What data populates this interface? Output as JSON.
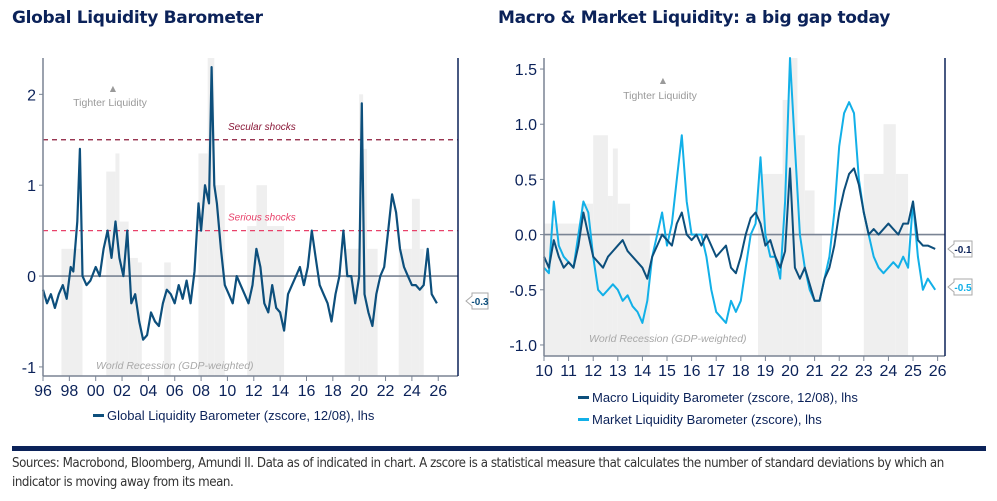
{
  "left": {
    "title": "Global Liquidity Barometer",
    "annotation_tighter": "Tighter Liquidity",
    "annotation_recession": "World Recession (GDP-weighted)",
    "secular_label": "Secular shocks",
    "serious_label": "Serious shocks",
    "legend": "Global Liquidity Barometer (zscore, 12/08), lhs",
    "last_value_label": "-0.3"
  },
  "right": {
    "title": "Macro & Market Liquidity: a big gap today",
    "annotation_tighter": "Tighter Liquidity",
    "annotation_recession": "World Recession (GDP-weighted)",
    "legend_macro": "Macro Liquidity Barometer (zscore, 12/08), lhs",
    "legend_market": "Market Liquidity Barometer (zscore), lhs",
    "last_value_macro": "-0.1",
    "last_value_market": "-0.5"
  },
  "footer": "Sources: Macrobond, Bloomberg, Amundi II. Data as of indicated in chart.  A zscore is a statistical measure that calculates the number of standard deviations by which an indicator is moving away from its mean.",
  "colors": {
    "navy": "#0b2259",
    "series_dark": "#0d4f7c",
    "series_light": "#12b0e8",
    "secular": "#8b1a3a",
    "serious": "#e8426a",
    "recession": "#efefef",
    "zero_line": "#7a8494"
  },
  "chart_data": [
    {
      "type": "line",
      "title": "Global Liquidity Barometer",
      "xlabel": "",
      "ylabel": "",
      "xlim": [
        1996,
        2027.5
      ],
      "ylim": [
        -1.1,
        2.4
      ],
      "x_ticks": [
        "96",
        "98",
        "00",
        "02",
        "04",
        "06",
        "08",
        "10",
        "12",
        "14",
        "16",
        "18",
        "20",
        "22",
        "24",
        "26"
      ],
      "x_tick_values": [
        1996,
        1998,
        2000,
        2002,
        2004,
        2006,
        2008,
        2010,
        2012,
        2014,
        2016,
        2018,
        2020,
        2022,
        2024,
        2026
      ],
      "y_ticks": [
        -1,
        0,
        1,
        2
      ],
      "reference_lines": [
        {
          "label": "Secular shocks",
          "y": 1.5
        },
        {
          "label": "Serious shocks",
          "y": 0.5
        },
        {
          "label": "zero",
          "y": 0
        }
      ],
      "recession_shading": [
        {
          "x0": 1997.4,
          "x1": 1999.0,
          "level": 0.3
        },
        {
          "x0": 2000.8,
          "x1": 2001.5,
          "level": 1.15
        },
        {
          "x0": 2001.5,
          "x1": 2001.8,
          "level": 1.35
        },
        {
          "x0": 2001.8,
          "x1": 2002.5,
          "level": 0.6
        },
        {
          "x0": 2002.5,
          "x1": 2003.2,
          "level": 0.2
        },
        {
          "x0": 2003.2,
          "x1": 2003.5,
          "level": 0.15
        },
        {
          "x0": 2005.2,
          "x1": 2005.7,
          "level": 0.15
        },
        {
          "x0": 2007.8,
          "x1": 2008.5,
          "level": 1.35
        },
        {
          "x0": 2008.5,
          "x1": 2009.0,
          "level": 2.4
        },
        {
          "x0": 2009.0,
          "x1": 2009.8,
          "level": 1.0
        },
        {
          "x0": 2011.5,
          "x1": 2012.2,
          "level": 0.55
        },
        {
          "x0": 2012.2,
          "x1": 2013.0,
          "level": 1.0
        },
        {
          "x0": 2013.0,
          "x1": 2014.3,
          "level": 0.55
        },
        {
          "x0": 2018.9,
          "x1": 2020.0,
          "level": 0.3
        },
        {
          "x0": 2020.0,
          "x1": 2020.3,
          "level": 2.0
        },
        {
          "x0": 2020.3,
          "x1": 2020.6,
          "level": 1.4
        },
        {
          "x0": 2020.6,
          "x1": 2021.4,
          "level": 0.3
        },
        {
          "x0": 2023.0,
          "x1": 2024.0,
          "level": 0.3
        },
        {
          "x0": 2024.0,
          "x1": 2024.6,
          "level": 0.85
        },
        {
          "x0": 2024.6,
          "x1": 2024.9,
          "level": 0.3
        }
      ],
      "series": [
        {
          "name": "Global Liquidity Barometer (zscore, 12/08), lhs",
          "x": [
            1996.0,
            1996.3,
            1996.6,
            1996.9,
            1997.2,
            1997.5,
            1997.8,
            1998.1,
            1998.3,
            1998.6,
            1998.8,
            1999.0,
            1999.3,
            1999.6,
            2000.0,
            2000.3,
            2000.6,
            2000.9,
            2001.2,
            2001.5,
            2001.8,
            2002.1,
            2002.4,
            2002.7,
            2003.0,
            2003.3,
            2003.6,
            2003.9,
            2004.2,
            2004.5,
            2004.8,
            2005.1,
            2005.4,
            2005.7,
            2006.0,
            2006.3,
            2006.6,
            2006.9,
            2007.2,
            2007.5,
            2007.8,
            2008.0,
            2008.3,
            2008.6,
            2008.8,
            2009.0,
            2009.2,
            2009.5,
            2009.8,
            2010.1,
            2010.4,
            2010.7,
            2011.0,
            2011.3,
            2011.6,
            2011.9,
            2012.2,
            2012.5,
            2012.8,
            2013.1,
            2013.4,
            2013.7,
            2014.0,
            2014.3,
            2014.6,
            2014.9,
            2015.2,
            2015.5,
            2015.8,
            2016.1,
            2016.4,
            2016.7,
            2017.0,
            2017.3,
            2017.6,
            2017.9,
            2018.2,
            2018.5,
            2018.8,
            2019.1,
            2019.4,
            2019.7,
            2020.0,
            2020.2,
            2020.4,
            2020.7,
            2021.0,
            2021.3,
            2021.6,
            2021.9,
            2022.2,
            2022.5,
            2022.8,
            2023.1,
            2023.4,
            2023.7,
            2024.0,
            2024.3,
            2024.6,
            2024.9,
            2025.2,
            2025.5,
            2025.9
          ],
          "y": [
            -0.15,
            -0.3,
            -0.2,
            -0.35,
            -0.2,
            -0.1,
            -0.25,
            0.1,
            0.05,
            0.6,
            1.4,
            0.0,
            -0.1,
            -0.05,
            0.1,
            0.0,
            0.3,
            0.5,
            0.2,
            0.6,
            0.2,
            0.0,
            0.5,
            -0.3,
            -0.2,
            -0.5,
            -0.7,
            -0.65,
            -0.4,
            -0.5,
            -0.55,
            -0.3,
            -0.15,
            -0.2,
            -0.3,
            -0.1,
            -0.25,
            -0.05,
            -0.3,
            0.05,
            0.8,
            0.5,
            1.0,
            0.8,
            2.3,
            1.0,
            0.8,
            0.3,
            -0.1,
            -0.2,
            -0.3,
            0.0,
            -0.1,
            -0.2,
            -0.3,
            -0.1,
            0.3,
            0.1,
            -0.3,
            -0.4,
            -0.1,
            -0.35,
            -0.4,
            -0.6,
            -0.2,
            -0.1,
            0.0,
            0.1,
            -0.1,
            0.1,
            0.5,
            0.2,
            -0.1,
            -0.2,
            -0.3,
            -0.5,
            -0.2,
            0.0,
            0.5,
            0.0,
            0.0,
            -0.3,
            0.0,
            1.9,
            -0.2,
            -0.4,
            -0.55,
            -0.2,
            0.0,
            0.1,
            0.5,
            0.9,
            0.7,
            0.3,
            0.1,
            0.0,
            -0.1,
            -0.1,
            -0.15,
            -0.1,
            0.3,
            -0.2,
            -0.3
          ]
        }
      ]
    },
    {
      "type": "line",
      "title": "Macro & Market Liquidity: a big gap today",
      "xlabel": "",
      "ylabel": "",
      "xlim": [
        2010,
        2026.3
      ],
      "ylim": [
        -1.1,
        1.6
      ],
      "x_ticks": [
        "10",
        "11",
        "12",
        "13",
        "14",
        "15",
        "16",
        "17",
        "18",
        "19",
        "20",
        "21",
        "22",
        "23",
        "24",
        "25",
        "26"
      ],
      "x_tick_values": [
        2010,
        2011,
        2012,
        2013,
        2014,
        2015,
        2016,
        2017,
        2018,
        2019,
        2020,
        2021,
        2022,
        2023,
        2024,
        2025,
        2026
      ],
      "y_ticks": [
        -1.0,
        -0.5,
        0.0,
        0.5,
        1.0,
        1.5
      ],
      "reference_lines": [
        {
          "label": "zero",
          "y": 0
        }
      ],
      "recession_shading": [
        {
          "x0": 2010.0,
          "x1": 2011.5,
          "level": 0.1
        },
        {
          "x0": 2011.5,
          "x1": 2012.0,
          "level": 0.28
        },
        {
          "x0": 2012.0,
          "x1": 2012.6,
          "level": 0.9
        },
        {
          "x0": 2012.6,
          "x1": 2012.8,
          "level": 0.35
        },
        {
          "x0": 2012.8,
          "x1": 2013.0,
          "level": 0.78
        },
        {
          "x0": 2013.0,
          "x1": 2013.5,
          "level": 0.28
        },
        {
          "x0": 2013.5,
          "x1": 2014.3,
          "level": 0.0
        },
        {
          "x0": 2018.7,
          "x1": 2019.7,
          "level": 0.55
        },
        {
          "x0": 2019.7,
          "x1": 2020.0,
          "level": 1.22
        },
        {
          "x0": 2020.0,
          "x1": 2020.3,
          "level": 1.6
        },
        {
          "x0": 2020.3,
          "x1": 2020.6,
          "level": 0.9
        },
        {
          "x0": 2020.6,
          "x1": 2021.0,
          "level": 0.4
        },
        {
          "x0": 2021.0,
          "x1": 2021.3,
          "level": 0.0
        },
        {
          "x0": 2023.0,
          "x1": 2023.8,
          "level": 0.55
        },
        {
          "x0": 2023.8,
          "x1": 2024.3,
          "level": 1.0
        },
        {
          "x0": 2024.3,
          "x1": 2024.8,
          "level": 0.55
        }
      ],
      "series": [
        {
          "name": "Macro Liquidity Barometer (zscore, 12/08), lhs",
          "x": [
            2010.0,
            2010.2,
            2010.4,
            2010.6,
            2010.8,
            2011.0,
            2011.2,
            2011.4,
            2011.6,
            2011.8,
            2012.0,
            2012.2,
            2012.4,
            2012.6,
            2012.8,
            2013.0,
            2013.2,
            2013.4,
            2013.6,
            2013.8,
            2014.0,
            2014.2,
            2014.4,
            2014.6,
            2014.8,
            2015.0,
            2015.2,
            2015.4,
            2015.6,
            2015.8,
            2016.0,
            2016.2,
            2016.4,
            2016.6,
            2016.8,
            2017.0,
            2017.2,
            2017.4,
            2017.6,
            2017.8,
            2018.0,
            2018.2,
            2018.4,
            2018.6,
            2018.8,
            2019.0,
            2019.2,
            2019.4,
            2019.6,
            2019.8,
            2020.0,
            2020.2,
            2020.4,
            2020.6,
            2020.8,
            2021.0,
            2021.2,
            2021.4,
            2021.6,
            2021.8,
            2022.0,
            2022.2,
            2022.4,
            2022.6,
            2022.8,
            2023.0,
            2023.2,
            2023.4,
            2023.6,
            2023.8,
            2024.0,
            2024.2,
            2024.4,
            2024.6,
            2024.8,
            2025.0,
            2025.2,
            2025.4,
            2025.6,
            2025.9
          ],
          "y": [
            -0.2,
            -0.3,
            -0.05,
            -0.2,
            -0.3,
            -0.25,
            -0.3,
            -0.1,
            0.2,
            0.0,
            -0.2,
            -0.25,
            -0.3,
            -0.2,
            -0.15,
            -0.1,
            -0.05,
            -0.15,
            -0.2,
            -0.25,
            -0.3,
            -0.4,
            -0.2,
            -0.1,
            0.0,
            -0.05,
            -0.1,
            0.1,
            0.2,
            0.0,
            -0.05,
            0.0,
            -0.1,
            0.0,
            -0.1,
            -0.2,
            -0.15,
            -0.1,
            -0.3,
            -0.35,
            -0.2,
            0.0,
            0.15,
            0.2,
            0.1,
            -0.1,
            -0.05,
            -0.2,
            -0.3,
            -0.15,
            0.6,
            -0.3,
            -0.4,
            -0.3,
            -0.45,
            -0.6,
            -0.6,
            -0.4,
            -0.3,
            -0.1,
            0.2,
            0.4,
            0.55,
            0.6,
            0.45,
            0.2,
            0.0,
            0.05,
            0.0,
            0.05,
            0.1,
            0.05,
            0.0,
            0.1,
            0.1,
            0.3,
            -0.05,
            -0.1,
            -0.1,
            -0.13
          ]
        },
        {
          "name": "Market Liquidity Barometer (zscore), lhs",
          "x": [
            2010.0,
            2010.2,
            2010.4,
            2010.6,
            2010.8,
            2011.0,
            2011.2,
            2011.4,
            2011.6,
            2011.8,
            2012.0,
            2012.2,
            2012.4,
            2012.6,
            2012.8,
            2013.0,
            2013.2,
            2013.4,
            2013.6,
            2013.8,
            2014.0,
            2014.2,
            2014.4,
            2014.6,
            2014.8,
            2015.0,
            2015.2,
            2015.4,
            2015.6,
            2015.8,
            2016.0,
            2016.2,
            2016.4,
            2016.6,
            2016.8,
            2017.0,
            2017.2,
            2017.4,
            2017.6,
            2017.8,
            2018.0,
            2018.2,
            2018.4,
            2018.6,
            2018.8,
            2019.0,
            2019.2,
            2019.4,
            2019.6,
            2019.8,
            2020.0,
            2020.2,
            2020.4,
            2020.6,
            2020.8,
            2021.0,
            2021.2,
            2021.4,
            2021.6,
            2021.8,
            2022.0,
            2022.2,
            2022.4,
            2022.6,
            2022.8,
            2023.0,
            2023.2,
            2023.4,
            2023.6,
            2023.8,
            2024.0,
            2024.2,
            2024.4,
            2024.6,
            2024.8,
            2025.0,
            2025.2,
            2025.4,
            2025.6,
            2025.9
          ],
          "y": [
            -0.3,
            -0.35,
            0.3,
            -0.1,
            -0.2,
            -0.25,
            -0.3,
            0.0,
            0.3,
            0.2,
            -0.2,
            -0.5,
            -0.55,
            -0.5,
            -0.45,
            -0.5,
            -0.6,
            -0.55,
            -0.65,
            -0.7,
            -0.8,
            -0.6,
            -0.2,
            0.0,
            0.2,
            -0.1,
            0.1,
            0.5,
            0.9,
            0.3,
            0.0,
            0.0,
            0.0,
            -0.2,
            -0.5,
            -0.7,
            -0.75,
            -0.8,
            -0.6,
            -0.7,
            -0.6,
            -0.3,
            0.0,
            0.1,
            0.7,
            0.0,
            -0.2,
            -0.2,
            -0.4,
            0.3,
            1.6,
            0.8,
            0.0,
            -0.3,
            -0.5,
            -0.6,
            -0.6,
            -0.4,
            -0.2,
            0.2,
            0.8,
            1.1,
            1.2,
            1.1,
            0.5,
            0.2,
            0.0,
            -0.2,
            -0.3,
            -0.35,
            -0.3,
            -0.25,
            -0.3,
            -0.2,
            -0.3,
            0.3,
            -0.2,
            -0.5,
            -0.4,
            -0.5
          ]
        }
      ]
    }
  ]
}
